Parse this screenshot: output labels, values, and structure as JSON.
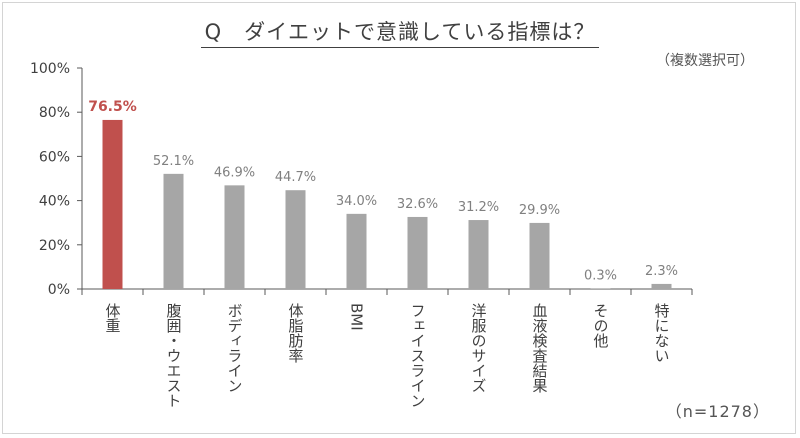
{
  "title": "Q　ダイエットで意識している指標は？",
  "subtitle": "（複数選択可）",
  "note": "（n=1278）",
  "colors": {
    "highlight": "#c0504d",
    "bar": "#a6a6a6",
    "axis": "#595959"
  },
  "chart_data": {
    "type": "bar",
    "title": "Q　ダイエットで意識している指標は？",
    "categories": [
      "体重",
      "腹囲・ウエスト",
      "ボディライン",
      "体脂肪率",
      "BMI",
      "フェイスライン",
      "洋服のサイズ",
      "血液検査結果",
      "その他",
      "特にない"
    ],
    "values": [
      76.5,
      52.1,
      46.9,
      44.7,
      34.0,
      32.6,
      31.2,
      29.9,
      0.3,
      2.3
    ],
    "value_labels": [
      "76.5%",
      "52.1%",
      "46.9%",
      "44.7%",
      "34.0%",
      "32.6%",
      "31.2%",
      "29.9%",
      "0.3%",
      "2.3%"
    ],
    "highlight_index": 0,
    "ylim": [
      0,
      100
    ],
    "yticks": [
      "0%",
      "20%",
      "40%",
      "60%",
      "80%",
      "100%"
    ],
    "ytick_values": [
      0,
      20,
      40,
      60,
      80,
      100
    ],
    "xlabel": "",
    "ylabel": "",
    "grid": false,
    "legend": "none"
  }
}
